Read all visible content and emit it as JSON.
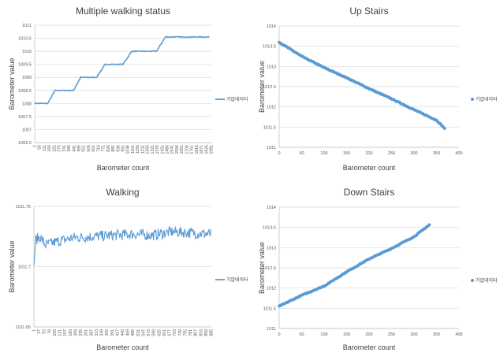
{
  "chart_data": [
    {
      "type": "line",
      "title": "Multiple walking status",
      "xlabel": "Barometer count",
      "ylabel": "Barometer value",
      "legend": "기압데이터",
      "legend_position": "right",
      "color": "#5b9bd5",
      "ylim": [
        1006.5,
        1011
      ],
      "yticks": [
        1006.5,
        1007,
        1007.5,
        1008,
        1008.5,
        1009,
        1009.5,
        1010,
        1010.5,
        1011
      ],
      "x_range": [
        1,
        2000
      ],
      "x_tick_labels": [
        "1",
        "56",
        "111",
        "166",
        "221",
        "276",
        "331",
        "386",
        "441",
        "496",
        "551",
        "606",
        "661",
        "716",
        "771",
        "826",
        "881",
        "936",
        "991",
        "1046",
        "1101",
        "1156",
        "1211",
        "1266",
        "1321",
        "1376",
        "1431",
        "1486",
        "1541",
        "1596",
        "1651",
        "1706",
        "1761",
        "1816",
        "1871",
        "1926",
        "1981"
      ],
      "steps": [
        {
          "x_start": 1,
          "x_end": 150,
          "value": 1008.0
        },
        {
          "x_start": 230,
          "x_end": 440,
          "value": 1008.5
        },
        {
          "x_start": 520,
          "x_end": 700,
          "value": 1009.0
        },
        {
          "x_start": 800,
          "x_end": 1000,
          "value": 1009.5
        },
        {
          "x_start": 1100,
          "x_end": 1380,
          "value": 1010.0
        },
        {
          "x_start": 1480,
          "x_end": 1981,
          "value": 1010.55
        }
      ]
    },
    {
      "type": "scatter",
      "title": "Up Stairs",
      "xlabel": "Barometer count",
      "ylabel": "Barometer value",
      "legend": "기압데이터",
      "legend_position": "right",
      "color": "#5b9bd5",
      "xlim": [
        0,
        400
      ],
      "ylim": [
        1011,
        1014
      ],
      "xticks": [
        0,
        50,
        100,
        150,
        200,
        250,
        300,
        350,
        400
      ],
      "yticks": [
        1011,
        1011.5,
        1012,
        1012.5,
        1013,
        1013.5,
        1014
      ],
      "x": [
        0,
        50,
        100,
        150,
        200,
        250,
        300,
        350,
        368
      ],
      "y": [
        1013.6,
        1013.25,
        1012.97,
        1012.72,
        1012.45,
        1012.2,
        1011.93,
        1011.67,
        1011.47
      ]
    },
    {
      "type": "line",
      "title": "Walking",
      "xlabel": "Barometer count",
      "ylabel": "Barometer value",
      "legend": "기압데이터",
      "legend_position": "right",
      "color": "#5b9bd5",
      "ylim": [
        1011.65,
        1011.75
      ],
      "yticks": [
        1011.65,
        1011.7,
        1011.75
      ],
      "x_range": [
        1,
        900
      ],
      "x_tick_labels": [
        "1",
        "27",
        "53",
        "79",
        "105",
        "131",
        "157",
        "183",
        "209",
        "235",
        "261",
        "287",
        "313",
        "339",
        "365",
        "391",
        "417",
        "443",
        "469",
        "495",
        "521",
        "547",
        "573",
        "599",
        "625",
        "651",
        "677",
        "703",
        "729",
        "755",
        "781",
        "807",
        "833",
        "859",
        "885"
      ],
      "profile_x": [
        1,
        10,
        30,
        60,
        100,
        150,
        200,
        300,
        400,
        500,
        600,
        700,
        800,
        900
      ],
      "profile_y": [
        1011.701,
        1011.722,
        1011.725,
        1011.718,
        1011.72,
        1011.722,
        1011.724,
        1011.725,
        1011.726,
        1011.727,
        1011.726,
        1011.729,
        1011.728,
        1011.727
      ]
    },
    {
      "type": "scatter",
      "title": "Down Stairs",
      "xlabel": "Barometer count",
      "ylabel": "Barometer value",
      "legend": "기압데이터",
      "legend_position": "right",
      "color": "#5b9bd5",
      "xlim": [
        0,
        400
      ],
      "ylim": [
        1011,
        1014
      ],
      "xticks": [
        0,
        50,
        100,
        150,
        200,
        250,
        300,
        350,
        400
      ],
      "yticks": [
        1011,
        1011.5,
        1012,
        1012.5,
        1013,
        1013.5,
        1014
      ],
      "x": [
        0,
        50,
        100,
        150,
        200,
        250,
        300,
        335
      ],
      "y": [
        1011.55,
        1011.82,
        1012.05,
        1012.4,
        1012.72,
        1012.98,
        1013.27,
        1013.57
      ]
    }
  ]
}
